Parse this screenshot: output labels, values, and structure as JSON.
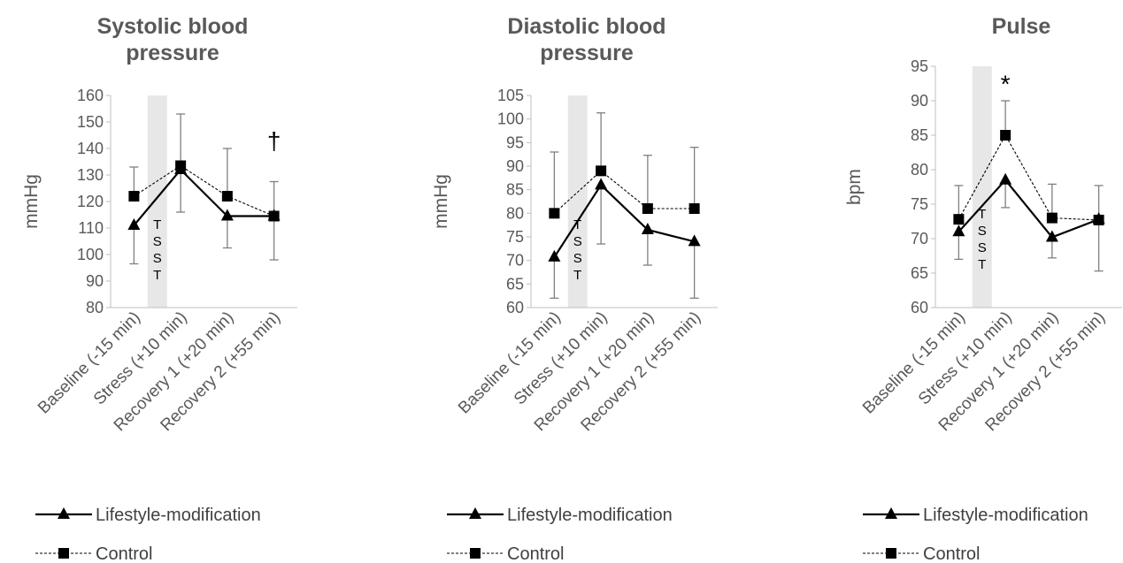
{
  "colors": {
    "text": "#595959",
    "axis": "#bfbfbf",
    "shade": "#e7e7e7",
    "err": "#808080",
    "line": "#000000"
  },
  "legend": {
    "lifestyle_label": "Lifestyle-modification",
    "control_label": "Control"
  },
  "tsst": [
    "T",
    "S",
    "S",
    "T"
  ],
  "chart_data": [
    {
      "type": "line",
      "title_lines": [
        "Systolic blood",
        "pressure"
      ],
      "ylabel": "mmHg",
      "ylim": [
        80,
        160
      ],
      "yticks": [
        80,
        90,
        100,
        110,
        120,
        130,
        140,
        150,
        160
      ],
      "categories": [
        "Baseline (-15 min)",
        "Stress (+10 min)",
        "Recovery 1 (+20 min)",
        "Recovery 2 (+55 min)"
      ],
      "series": [
        {
          "name": "Lifestyle-modification",
          "marker": "triangle",
          "style": "solid",
          "values": [
            111,
            132,
            114.5,
            114.5
          ],
          "err_low": [
            96.5,
            116,
            102.5,
            98
          ]
        },
        {
          "name": "Control",
          "marker": "square",
          "style": "dashed",
          "values": [
            122,
            133.5,
            122,
            114.5
          ],
          "err_high": [
            133,
            153,
            140,
            127.5
          ]
        }
      ],
      "annotation": {
        "text": "†",
        "category_index": 3,
        "value": 143
      },
      "legend_position": "bottom"
    },
    {
      "type": "line",
      "title_lines": [
        "Diastolic blood",
        "pressure"
      ],
      "ylabel": "mmHg",
      "ylim": [
        60,
        105
      ],
      "yticks": [
        60,
        65,
        70,
        75,
        80,
        85,
        90,
        95,
        100,
        105
      ],
      "categories": [
        "Baseline (-15 min)",
        "Stress (+10 min)",
        "Recovery 1 (+20 min)",
        "Recovery 2 (+55 min)"
      ],
      "series": [
        {
          "name": "Lifestyle-modification",
          "marker": "triangle",
          "style": "solid",
          "values": [
            70.7,
            86,
            76.5,
            74
          ],
          "err_low": [
            62,
            73.5,
            69,
            62
          ]
        },
        {
          "name": "Control",
          "marker": "square",
          "style": "dashed",
          "values": [
            80,
            89,
            81,
            81
          ],
          "err_high": [
            93,
            101.3,
            92.3,
            94
          ]
        }
      ],
      "legend_position": "bottom"
    },
    {
      "type": "line",
      "title_lines": [
        "Pulse"
      ],
      "ylabel": "bpm",
      "ylim": [
        60,
        95
      ],
      "yticks": [
        60,
        65,
        70,
        75,
        80,
        85,
        90,
        95
      ],
      "categories": [
        "Baseline (-15 min)",
        "Stress (+10 min)",
        "Recovery 1 (+20 min)",
        "Recovery 2 (+55 min)"
      ],
      "series": [
        {
          "name": "Lifestyle-modification",
          "marker": "triangle",
          "style": "solid",
          "values": [
            71,
            78.5,
            70.2,
            72.8
          ],
          "err_low": [
            67,
            74.5,
            67.2,
            65.3
          ]
        },
        {
          "name": "Control",
          "marker": "square",
          "style": "dashed",
          "values": [
            72.8,
            85,
            73,
            72.7
          ],
          "err_high": [
            77.7,
            90,
            77.9,
            77.7
          ]
        }
      ],
      "annotation": {
        "text": "*",
        "category_index": 1,
        "value": 92.5
      },
      "legend_position": "bottom"
    }
  ]
}
